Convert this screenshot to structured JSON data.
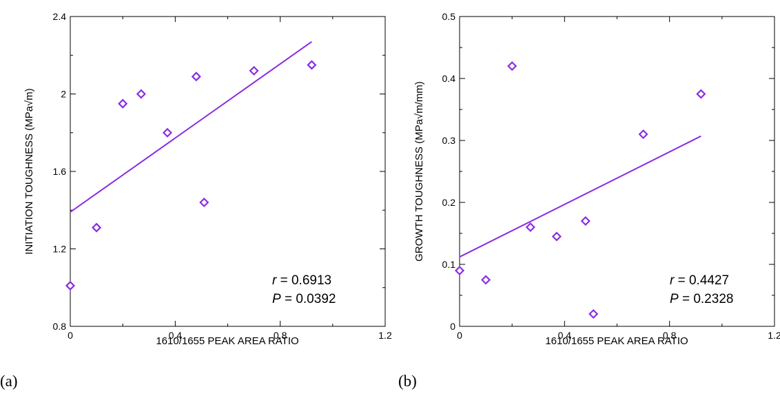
{
  "chart_data": [
    {
      "type": "scatter",
      "panel_label": "(a)",
      "xlabel": "1610/1655 PEAK AREA RATIO",
      "ylabel": "INITIATION TOUGHNESS (MPa√m)",
      "xlim": [
        0,
        1.2
      ],
      "ylim": [
        0.8,
        2.4
      ],
      "xticks": [
        "0",
        "0.4",
        "0.8",
        "1.2"
      ],
      "yticks": [
        "0.8",
        "1.2",
        "1.6",
        "2",
        "2.4"
      ],
      "x": [
        0.0,
        0.1,
        0.2,
        0.27,
        0.37,
        0.48,
        0.51,
        0.7,
        0.92
      ],
      "y": [
        1.01,
        1.31,
        1.95,
        2.0,
        1.8,
        2.09,
        1.44,
        2.12,
        2.15
      ],
      "fit_line": {
        "x": [
          0.0,
          0.92
        ],
        "y": [
          1.39,
          2.27
        ]
      },
      "annotation": {
        "r_symbol": "r",
        "r_text": " = 0.6913",
        "p_symbol": "P",
        "p_text": " = 0.0392"
      },
      "marker": "open-diamond",
      "grid": false
    },
    {
      "type": "scatter",
      "panel_label": "(b)",
      "xlabel": "1610/1655 PEAK AREA RATIO",
      "ylabel": "GROWTH TOUGHNESS (MPa√m/mm)",
      "xlim": [
        0,
        1.2
      ],
      "ylim": [
        0,
        0.5
      ],
      "xticks": [
        "0",
        "0.4",
        "0.8",
        "1.2"
      ],
      "yticks": [
        "0",
        "0.1",
        "0.2",
        "0.3",
        "0.4",
        "0.5"
      ],
      "x": [
        0.0,
        0.1,
        0.2,
        0.27,
        0.37,
        0.48,
        0.51,
        0.7,
        0.92
      ],
      "y": [
        0.09,
        0.075,
        0.42,
        0.16,
        0.145,
        0.17,
        0.02,
        0.31,
        0.375
      ],
      "fit_line": {
        "x": [
          0.0,
          0.92
        ],
        "y": [
          0.112,
          0.307
        ]
      },
      "annotation": {
        "r_symbol": "r",
        "r_text": " = 0.4427",
        "p_symbol": "P",
        "p_text": " = 0.2328"
      },
      "marker": "open-diamond",
      "grid": false
    }
  ],
  "colors": {
    "series": "#8a2be2",
    "axis": "#000000"
  }
}
